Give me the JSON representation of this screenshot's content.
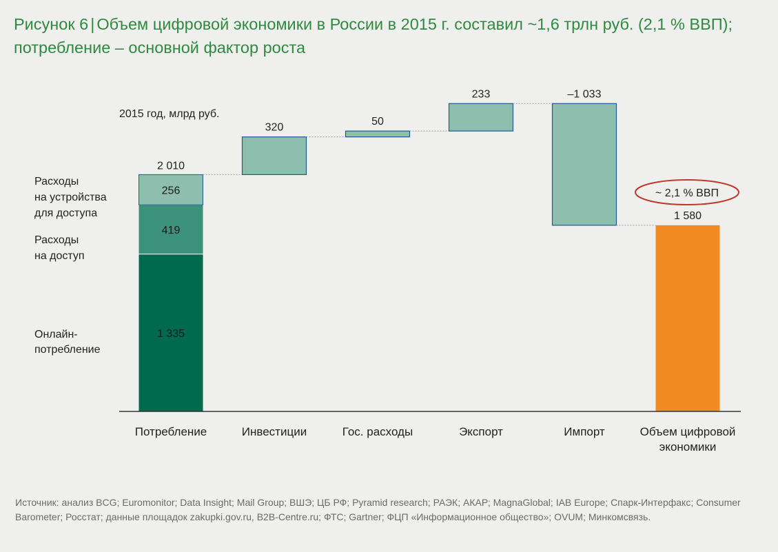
{
  "title": {
    "label": "Рисунок 6",
    "separator": "|",
    "text": "Объем цифровой экономики в России в 2015 г. составил ~1,6 трлн руб. (2,1 % ВВП); потребление – основной фактор роста"
  },
  "chart_data": {
    "type": "bar",
    "subtype": "waterfall",
    "unit_label": "2015 год, млрд руб.",
    "categories": [
      "Потребление",
      "Инвестиции",
      "Гос. расходы",
      "Экспорт",
      "Импорт",
      "Объем цифровой экономики"
    ],
    "consumption": {
      "segments": [
        {
          "name": "Онлайн-потребление",
          "value": 1335,
          "value_label": "1 335",
          "color": "#006a4e"
        },
        {
          "name": "Расходы на доступ",
          "value": 419,
          "value_label": "419",
          "color": "#3c927b"
        },
        {
          "name": "Расходы на устройства для доступа",
          "value": 256,
          "value_label": "256",
          "color": "#8ebfae"
        }
      ],
      "segment_labels": [
        [
          "Онлайн-",
          "потребление"
        ],
        [
          "Расходы",
          "на доступ"
        ],
        [
          "Расходы",
          "на устройства",
          "для доступа"
        ]
      ],
      "total": 2010,
      "total_label": "2 010"
    },
    "steps": [
      {
        "category": "Инвестиции",
        "value": 320,
        "value_label": "320"
      },
      {
        "category": "Гос. расходы",
        "value": 50,
        "value_label": "50"
      },
      {
        "category": "Экспорт",
        "value": 233,
        "value_label": "233"
      },
      {
        "category": "Импорт",
        "value": -1033,
        "value_label": "–1 033"
      }
    ],
    "result": {
      "category": "Объем цифровой экономики",
      "value": 1580,
      "value_label": "1 580",
      "color": "#f28a22"
    },
    "annotation": "~ 2,1 % ВВП",
    "category_labels": [
      [
        "Потребление"
      ],
      [
        "Инвестиции"
      ],
      [
        "Гос. расходы"
      ],
      [
        "Экспорт"
      ],
      [
        "Импорт"
      ],
      [
        "Объем цифровой",
        "экономики"
      ]
    ],
    "colors": {
      "step_fill": "#8ebfae",
      "step_stroke": "#1f5c8c",
      "annotation_ellipse": "#c0392b",
      "connector": "#9a9a9a",
      "axis": "#333333"
    },
    "ylim": [
      0,
      2650
    ],
    "grid": false
  },
  "source": "Источник: анализ BCG; Euromonitor; Data Insight; Mail Group; ВШЭ; ЦБ РФ; Pyramid research; РАЭК; АКАР; MagnaGlobal; IAB Europe; Спарк-Интерфакс; Consumer Barometer; Росстат; данные площадок zakupki.gov.ru, B2B-Centre.ru; ФТС; Gartner; ФЦП «Информационное общество»; OVUM; Минкомсвязь."
}
